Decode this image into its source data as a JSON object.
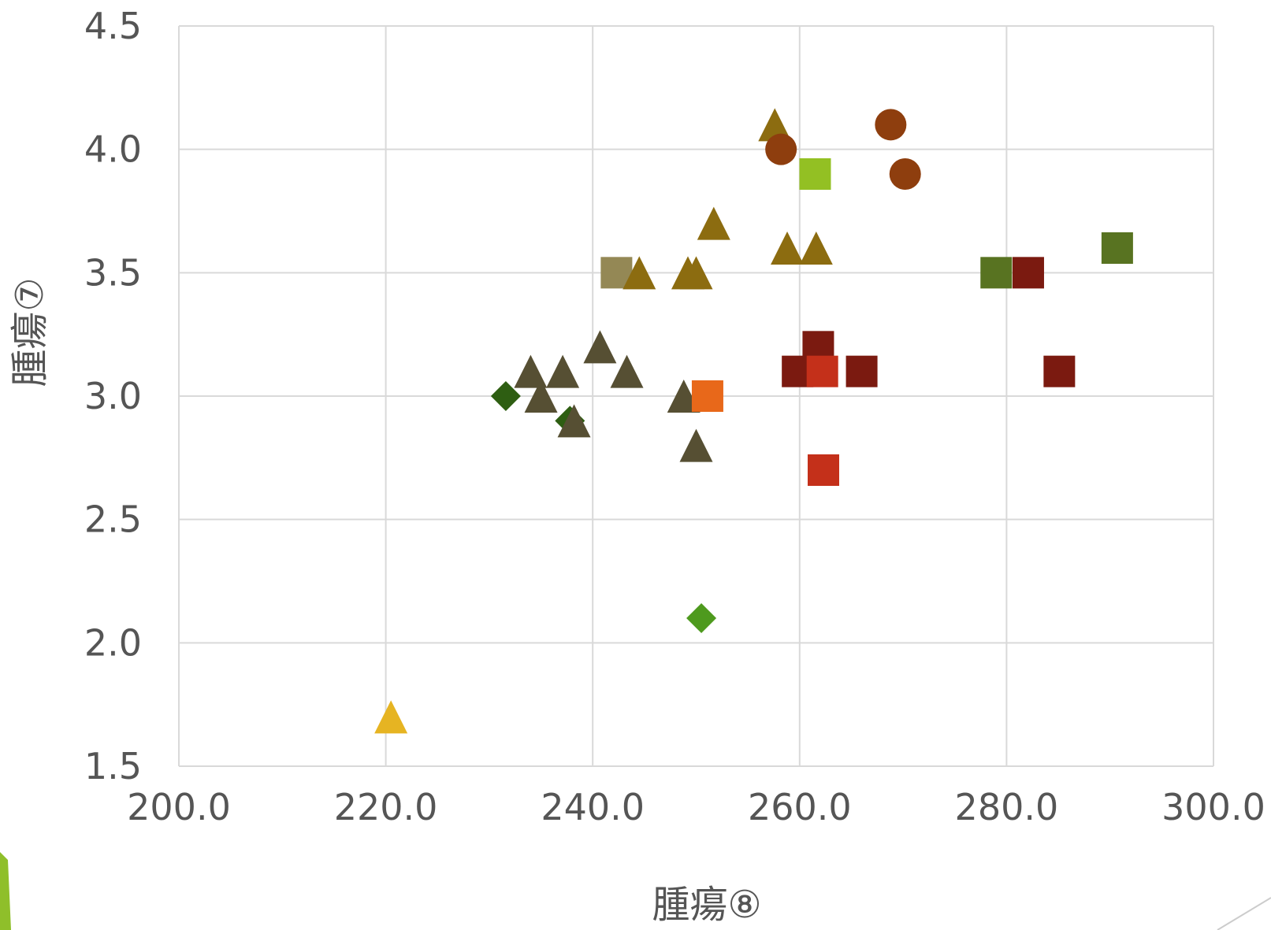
{
  "chart_data": {
    "type": "scatter",
    "title": "",
    "xlabel": "腫瘍⑧",
    "ylabel": "腫瘍⑦",
    "xlim": [
      200,
      300
    ],
    "ylim": [
      1.5,
      4.5
    ],
    "x_ticks": [
      "200.0",
      "220.0",
      "240.0",
      "260.0",
      "280.0",
      "300.0"
    ],
    "y_ticks": [
      "1.5",
      "2.0",
      "2.5",
      "3.0",
      "3.5",
      "4.0",
      "4.5"
    ],
    "grid": true,
    "legend": "none",
    "points": [
      {
        "x": 220.5,
        "y": 1.7,
        "marker": "triangle",
        "color": "#E6B422"
      },
      {
        "x": 250.5,
        "y": 2.1,
        "marker": "diamond",
        "color": "#4E9A1E"
      },
      {
        "x": 231.6,
        "y": 3.0,
        "marker": "diamond",
        "color": "#2E5E12"
      },
      {
        "x": 237.8,
        "y": 2.9,
        "marker": "diamond",
        "color": "#2E5E12"
      },
      {
        "x": 234.0,
        "y": 3.1,
        "marker": "triangle",
        "color": "#564F33"
      },
      {
        "x": 235.0,
        "y": 3.0,
        "marker": "triangle",
        "color": "#564F33"
      },
      {
        "x": 237.1,
        "y": 3.1,
        "marker": "triangle",
        "color": "#564F33"
      },
      {
        "x": 238.2,
        "y": 2.9,
        "marker": "triangle",
        "color": "#564F33"
      },
      {
        "x": 240.7,
        "y": 3.2,
        "marker": "triangle",
        "color": "#564F33"
      },
      {
        "x": 243.3,
        "y": 3.1,
        "marker": "triangle",
        "color": "#564F33"
      },
      {
        "x": 248.8,
        "y": 3.0,
        "marker": "triangle",
        "color": "#564F33"
      },
      {
        "x": 250.0,
        "y": 2.8,
        "marker": "triangle",
        "color": "#564F33"
      },
      {
        "x": 251.1,
        "y": 3.0,
        "marker": "square",
        "color": "#E8681A"
      },
      {
        "x": 242.3,
        "y": 3.5,
        "marker": "square",
        "color": "#948855"
      },
      {
        "x": 244.5,
        "y": 3.5,
        "marker": "triangle",
        "color": "#8C6C10"
      },
      {
        "x": 249.2,
        "y": 3.5,
        "marker": "triangle",
        "color": "#8C6C10"
      },
      {
        "x": 250.0,
        "y": 3.5,
        "marker": "triangle",
        "color": "#8C6C10"
      },
      {
        "x": 251.7,
        "y": 3.7,
        "marker": "triangle",
        "color": "#8C6C10"
      },
      {
        "x": 257.6,
        "y": 4.1,
        "marker": "triangle",
        "color": "#8C6C10"
      },
      {
        "x": 258.8,
        "y": 3.6,
        "marker": "triangle",
        "color": "#8C6C10"
      },
      {
        "x": 261.6,
        "y": 3.6,
        "marker": "triangle",
        "color": "#8C6C10"
      },
      {
        "x": 258.2,
        "y": 4.0,
        "marker": "circle",
        "color": "#8E3E0E"
      },
      {
        "x": 268.8,
        "y": 4.1,
        "marker": "circle",
        "color": "#8E3E0E"
      },
      {
        "x": 270.2,
        "y": 3.9,
        "marker": "circle",
        "color": "#8E3E0E"
      },
      {
        "x": 261.5,
        "y": 3.9,
        "marker": "square",
        "color": "#93C023"
      },
      {
        "x": 279.0,
        "y": 3.5,
        "marker": "square",
        "color": "#587321"
      },
      {
        "x": 290.7,
        "y": 3.6,
        "marker": "square",
        "color": "#587321"
      },
      {
        "x": 282.1,
        "y": 3.5,
        "marker": "square",
        "color": "#7B1A10"
      },
      {
        "x": 259.8,
        "y": 3.1,
        "marker": "square",
        "color": "#7B1A10"
      },
      {
        "x": 261.8,
        "y": 3.2,
        "marker": "square",
        "color": "#7B1A10"
      },
      {
        "x": 262.2,
        "y": 3.1,
        "marker": "square",
        "color": "#C4301A"
      },
      {
        "x": 266.0,
        "y": 3.1,
        "marker": "square",
        "color": "#7B1A10"
      },
      {
        "x": 285.1,
        "y": 3.1,
        "marker": "square",
        "color": "#7B1A10"
      },
      {
        "x": 262.3,
        "y": 2.7,
        "marker": "square",
        "color": "#C4301A"
      }
    ]
  }
}
